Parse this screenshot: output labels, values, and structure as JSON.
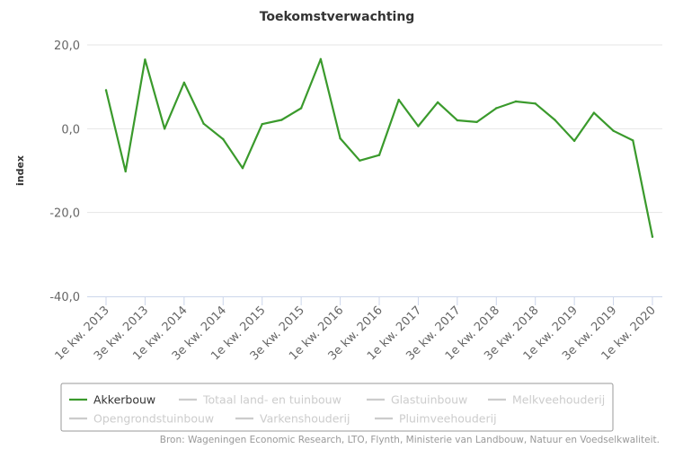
{
  "chart_data": {
    "type": "line",
    "title": "Toekomstverwachting",
    "ylabel": "index",
    "xlabel": "",
    "ylim": [
      -40,
      20
    ],
    "yticks": [
      "20,0",
      "0,0",
      "-20,0",
      "-40,0"
    ],
    "ytick_values": [
      20,
      0,
      -20,
      -40
    ],
    "x": [
      "1e kw. 2013",
      "2e kw. 2013",
      "3e kw. 2013",
      "4e kw. 2013",
      "1e kw. 2014",
      "2e kw. 2014",
      "3e kw. 2014",
      "4e kw. 2014",
      "1e kw. 2015",
      "2e kw. 2015",
      "3e kw. 2015",
      "4e kw. 2015",
      "1e kw. 2016",
      "2e kw. 2016",
      "3e kw. 2016",
      "4e kw. 2016",
      "1e kw. 2017",
      "2e kw. 2017",
      "3e kw. 2017",
      "4e kw. 2017",
      "1e kw. 2018",
      "2e kw. 2018",
      "3e kw. 2018",
      "4e kw. 2018",
      "1e kw. 2019",
      "2e kw. 2019",
      "3e kw. 2019",
      "4e kw. 2019",
      "1e kw. 2020"
    ],
    "xtick_labels": [
      "1e kw. 2013",
      "3e kw. 2013",
      "1e kw. 2014",
      "3e kw. 2014",
      "1e kw. 2015",
      "3e kw. 2015",
      "1e kw. 2016",
      "3e kw. 2016",
      "1e kw. 2017",
      "3e kw. 2017",
      "1e kw. 2018",
      "3e kw. 2018",
      "1e kw. 2019",
      "3e kw. 2019",
      "1e kw. 2020"
    ],
    "grid": true,
    "series": [
      {
        "name": "Akkerbouw",
        "color": "#3a9a2c",
        "visible": true,
        "values": [
          9.2,
          -10.2,
          16.5,
          0.0,
          11.0,
          1.2,
          -2.5,
          -9.4,
          1.1,
          2.1,
          4.9,
          16.6,
          -2.3,
          -7.6,
          -6.3,
          6.9,
          0.6,
          6.3,
          2.0,
          1.6,
          4.9,
          6.5,
          6.0,
          2.1,
          -2.9,
          3.8,
          -0.5,
          -2.8,
          -25.8
        ]
      },
      {
        "name": "Totaal land- en tuinbouw",
        "color": "#cccccc",
        "visible": false
      },
      {
        "name": "Glastuinbouw",
        "color": "#cccccc",
        "visible": false
      },
      {
        "name": "Melkveehouderij",
        "color": "#cccccc",
        "visible": false
      },
      {
        "name": "Opengrondstuinbouw",
        "color": "#cccccc",
        "visible": false
      },
      {
        "name": "Varkenshouderij",
        "color": "#cccccc",
        "visible": false
      },
      {
        "name": "Pluimveehouderij",
        "color": "#cccccc",
        "visible": false
      }
    ],
    "legend": "bottom-left",
    "credits": "Bron: Wageningen Economic Research, LTO, Flynth, Ministerie van Landbouw, Natuur en Voedselkwaliteit."
  }
}
